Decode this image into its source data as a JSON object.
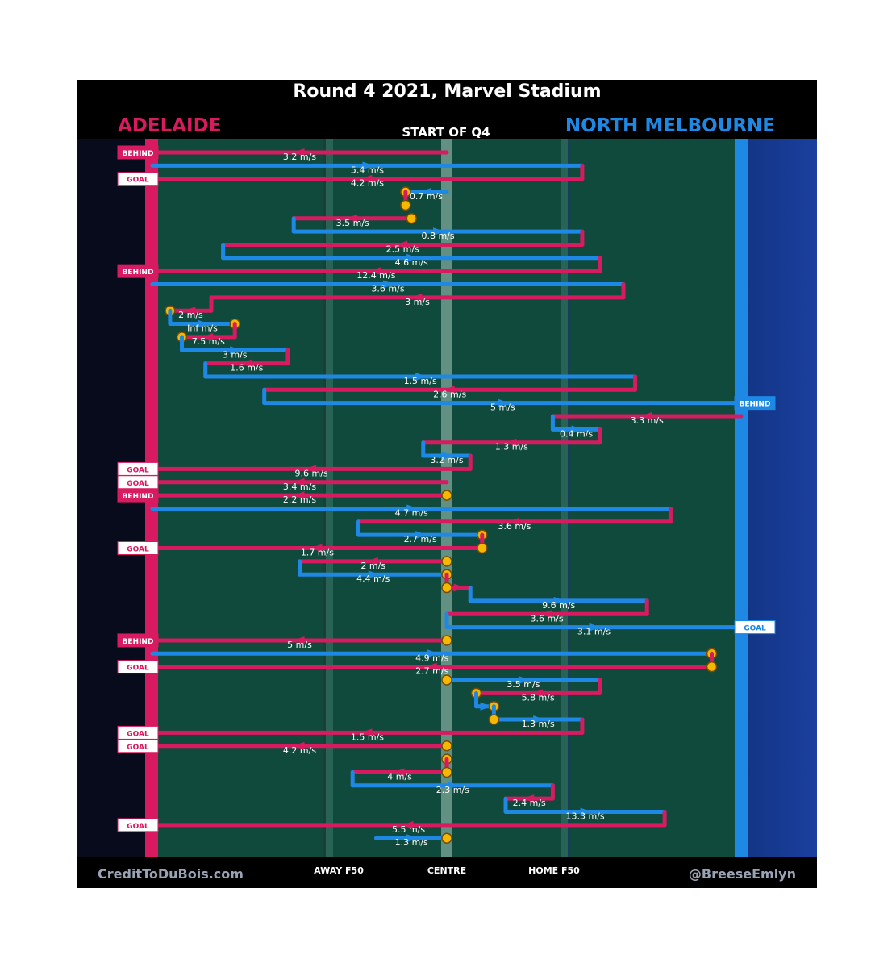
{
  "title": "Round 4 2021, Marvel Stadium",
  "quarter": "START OF Q4",
  "teams": {
    "left": "ADELAIDE",
    "right": "NORTH MELBOURNE"
  },
  "colors": {
    "adelaide": "#d81b60",
    "north": "#1e88e5",
    "field": "#0f4a3c",
    "bounce": "#f5b800"
  },
  "zones": {
    "away": "AWAY F50",
    "centre": "CENTRE",
    "home": "HOME F50"
  },
  "credits": {
    "left": "CreditToDuBois.com",
    "right": "@BreeseEmlyn"
  },
  "chart_data": {
    "type": "line",
    "x_positions": [
      "AWAY F50",
      "CENTRE",
      "HOME F50"
    ],
    "chains": [
      {
        "team": "adelaide",
        "start": 0.5,
        "end": 0.0,
        "speed": "3.2 m/s",
        "result": "BEHIND"
      },
      {
        "team": "north",
        "start": 0.0,
        "end": 0.73,
        "speed": "5.4 m/s"
      },
      {
        "team": "adelaide",
        "start": 0.73,
        "end": 0.0,
        "speed": "4.2 m/s",
        "result": "GOAL"
      },
      {
        "team": "north",
        "start": 0.5,
        "end": 0.43,
        "speed": "0.7 m/s",
        "ends_bounce": true
      },
      {
        "team": "adelaide",
        "start": 0.43,
        "end": 0.43,
        "speed": "",
        "starts_bounce": true
      },
      {
        "team": "adelaide",
        "start": 0.44,
        "end": 0.24,
        "speed": "3.5 m/s",
        "starts_bounce": true
      },
      {
        "team": "north",
        "start": 0.24,
        "end": 0.73,
        "speed": "0.8 m/s"
      },
      {
        "team": "adelaide",
        "start": 0.73,
        "end": 0.12,
        "speed": "2.5 m/s"
      },
      {
        "team": "north",
        "start": 0.12,
        "end": 0.76,
        "speed": "4.6 m/s"
      },
      {
        "team": "adelaide",
        "start": 0.76,
        "end": 0.0,
        "speed": "12.4 m/s",
        "result": "BEHIND"
      },
      {
        "team": "north",
        "start": 0.0,
        "end": 0.8,
        "speed": "3.6 m/s"
      },
      {
        "team": "adelaide",
        "start": 0.8,
        "end": 0.1,
        "speed": "3 m/s"
      },
      {
        "team": "adelaide",
        "start": 0.1,
        "end": 0.03,
        "speed": "2 m/s",
        "ends_bounce": true
      },
      {
        "team": "north",
        "start": 0.03,
        "end": 0.14,
        "speed": "Inf m/s",
        "ends_bounce": true
      },
      {
        "team": "adelaide",
        "start": 0.14,
        "end": 0.05,
        "speed": "7.5 m/s",
        "ends_bounce": true
      },
      {
        "team": "north",
        "start": 0.05,
        "end": 0.23,
        "speed": "3 m/s"
      },
      {
        "team": "adelaide",
        "start": 0.23,
        "end": 0.09,
        "speed": "1.6 m/s"
      },
      {
        "team": "north",
        "start": 0.09,
        "end": 0.82,
        "speed": "1.5 m/s"
      },
      {
        "team": "adelaide",
        "start": 0.82,
        "end": 0.19,
        "speed": "2.6 m/s"
      },
      {
        "team": "north",
        "start": 0.19,
        "end": 1.0,
        "speed": "5 m/s",
        "result": "BEHIND"
      },
      {
        "team": "adelaide",
        "start": 1.0,
        "end": 0.68,
        "speed": "3.3 m/s"
      },
      {
        "team": "north",
        "start": 0.68,
        "end": 0.76,
        "speed": "0.4 m/s"
      },
      {
        "team": "adelaide",
        "start": 0.76,
        "end": 0.46,
        "speed": "1.3 m/s"
      },
      {
        "team": "north",
        "start": 0.46,
        "end": 0.54,
        "speed": "3.2 m/s"
      },
      {
        "team": "adelaide",
        "start": 0.54,
        "end": 0.0,
        "speed": "9.6 m/s",
        "result": "GOAL"
      },
      {
        "team": "adelaide",
        "start": 0.5,
        "end": 0.0,
        "speed": "3.4 m/s",
        "result": "GOAL"
      },
      {
        "team": "adelaide",
        "start": 0.5,
        "end": 0.0,
        "speed": "2.2 m/s",
        "result": "BEHIND",
        "starts_bounce": true
      },
      {
        "team": "north",
        "start": 0.0,
        "end": 0.88,
        "speed": "4.7 m/s"
      },
      {
        "team": "adelaide",
        "start": 0.88,
        "end": 0.35,
        "speed": "3.6 m/s"
      },
      {
        "team": "north",
        "start": 0.35,
        "end": 0.56,
        "speed": "2.7 m/s",
        "ends_bounce": true
      },
      {
        "team": "adelaide",
        "start": 0.56,
        "end": 0.0,
        "speed": "1.7 m/s",
        "result": "GOAL",
        "starts_bounce": true
      },
      {
        "team": "adelaide",
        "start": 0.5,
        "end": 0.25,
        "speed": "2 m/s",
        "starts_bounce": true
      },
      {
        "team": "north",
        "start": 0.25,
        "end": 0.5,
        "speed": "4.4 m/s",
        "ends_bounce": true
      },
      {
        "team": "adelaide",
        "start": 0.5,
        "end": 0.54,
        "speed": "",
        "starts_bounce": true
      },
      {
        "team": "north",
        "start": 0.54,
        "end": 0.84,
        "speed": "9.6 m/s"
      },
      {
        "team": "adelaide",
        "start": 0.84,
        "end": 0.5,
        "speed": "3.6 m/s"
      },
      {
        "team": "north",
        "start": 0.5,
        "end": 1.0,
        "speed": "3.1 m/s",
        "result": "GOAL"
      },
      {
        "team": "adelaide",
        "start": 0.5,
        "end": 0.0,
        "speed": "5 m/s",
        "result": "BEHIND",
        "starts_bounce": true
      },
      {
        "team": "north",
        "start": 0.0,
        "end": 0.95,
        "speed": "4.9 m/s",
        "ends_bounce": true
      },
      {
        "team": "adelaide",
        "start": 0.95,
        "end": 0.0,
        "speed": "2.7 m/s",
        "result": "GOAL",
        "starts_bounce": true
      },
      {
        "team": "north",
        "start": 0.5,
        "end": 0.76,
        "speed": "3.5 m/s",
        "starts_bounce": true
      },
      {
        "team": "adelaide",
        "start": 0.76,
        "end": 0.55,
        "speed": "5.8 m/s",
        "ends_bounce": true
      },
      {
        "team": "north",
        "start": 0.55,
        "end": 0.58,
        "speed": "",
        "ends_bounce": true
      },
      {
        "team": "north",
        "start": 0.58,
        "end": 0.73,
        "speed": "1.3 m/s",
        "starts_bounce": true
      },
      {
        "team": "adelaide",
        "start": 0.73,
        "end": 0.0,
        "speed": "1.5 m/s",
        "result": "GOAL"
      },
      {
        "team": "adelaide",
        "start": 0.5,
        "end": 0.0,
        "speed": "4.2 m/s",
        "result": "GOAL",
        "starts_bounce": true
      },
      {
        "team": "adelaide",
        "start": 0.5,
        "end": 0.5,
        "speed": "",
        "starts_bounce": true
      },
      {
        "team": "adelaide",
        "start": 0.5,
        "end": 0.34,
        "speed": "4 m/s",
        "starts_bounce": true
      },
      {
        "team": "north",
        "start": 0.34,
        "end": 0.68,
        "speed": "2.3 m/s"
      },
      {
        "team": "adelaide",
        "start": 0.68,
        "end": 0.6,
        "speed": "2.4 m/s"
      },
      {
        "team": "north",
        "start": 0.6,
        "end": 0.87,
        "speed": "13.3 m/s"
      },
      {
        "team": "adelaide",
        "start": 0.87,
        "end": 0.0,
        "speed": "5.5 m/s",
        "result": "GOAL"
      },
      {
        "team": "north",
        "start": 0.38,
        "end": 0.5,
        "speed": "1.3 m/s",
        "ends_bounce": true
      }
    ]
  }
}
